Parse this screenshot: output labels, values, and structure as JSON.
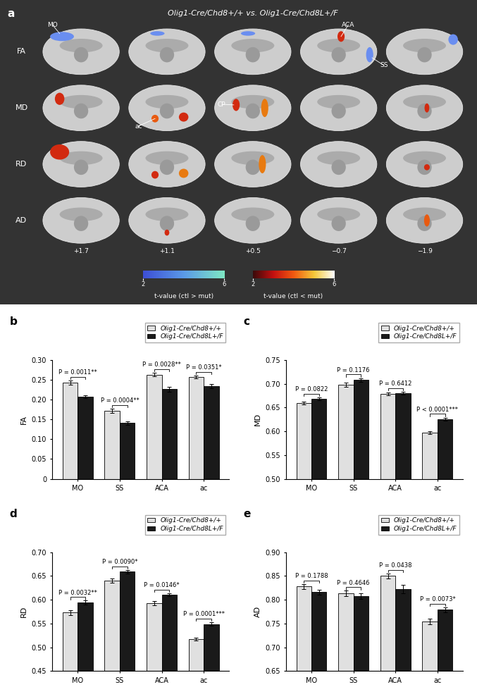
{
  "panel_a": {
    "panel_label": "a",
    "title": "Olig1-Cre/Chd8+/+ vs. Olig1-Cre/Chd8L+/F",
    "rows": [
      "FA",
      "MD",
      "RD",
      "AD"
    ],
    "columns": [
      "+1.7",
      "+1.1",
      "+0.5",
      "−0.7",
      "−1.9"
    ],
    "region_labels": [
      {
        "text": "MO",
        "row": 0,
        "col": 0
      },
      {
        "text": "ACA",
        "row": 0,
        "col": 3
      },
      {
        "text": "SS",
        "row": 0,
        "col": 3
      },
      {
        "text": "ac",
        "row": 1,
        "col": 1
      },
      {
        "text": "CP",
        "row": 1,
        "col": 2
      }
    ],
    "colorbars": [
      {
        "label": "t-value (ctl > mut)",
        "range": [
          2,
          6
        ],
        "ticks": [
          2,
          6
        ],
        "colors": [
          "#3d4fd6",
          "#5b9ae8",
          "#7fe8c4"
        ]
      },
      {
        "label": "t-value (ctl < mut)",
        "range": [
          2,
          6
        ],
        "ticks": [
          2,
          6
        ],
        "colors": [
          "#3a0a0a",
          "#c41010",
          "#f25a10",
          "#f5c83a",
          "#ffffff"
        ]
      }
    ]
  },
  "chart_data": [
    {
      "type": "bar",
      "panel_label": "b",
      "y_label": "FA",
      "categories": [
        "MO",
        "SS",
        "ACA",
        "ac"
      ],
      "ylim": [
        0,
        0.3
      ],
      "yticks": [
        0,
        0.05,
        {
          "value": 0.1,
          "label": "0.10"
        },
        0.15,
        {
          "value": 0.2,
          "label": "0.20"
        },
        0.25,
        {
          "value": 0.3,
          "label": "0.30"
        }
      ],
      "legend": "upper right",
      "series": [
        {
          "name": "Olig1-Cre/Chd8+/+",
          "color": "#e0e0e0",
          "values": [
            0.243,
            0.172,
            0.263,
            0.257
          ],
          "errors": [
            0.005,
            0.005,
            0.005,
            0.004
          ]
        },
        {
          "name": "Olig1-Cre/Chd8L+/F",
          "color": "#1a1a1a",
          "values": [
            0.207,
            0.141,
            0.226,
            0.234
          ],
          "errors": [
            0.004,
            0.004,
            0.007,
            0.005
          ]
        }
      ],
      "annotations": [
        "P = 0.0011**",
        "P = 0.0004**",
        "P = 0.0028**",
        "P = 0.0351*"
      ]
    },
    {
      "type": "bar",
      "panel_label": "c",
      "y_label": "MD",
      "categories": [
        "MO",
        "SS",
        "ACA",
        "ac"
      ],
      "ylim": [
        0.5,
        0.75
      ],
      "yticks": [
        {
          "value": 0.5,
          "label": "0.50"
        },
        0.55,
        {
          "value": 0.6,
          "label": "0.60"
        },
        0.65,
        {
          "value": 0.7,
          "label": "0.70"
        },
        0.75
      ],
      "legend": "upper right",
      "series": [
        {
          "name": "Olig1-Cre/Chd8+/+",
          "color": "#e0e0e0",
          "values": [
            0.659,
            0.698,
            0.678,
            0.597
          ],
          "errors": [
            0.003,
            0.004,
            0.003,
            0.003
          ]
        },
        {
          "name": "Olig1-Cre/Chd8L+/F",
          "color": "#1a1a1a",
          "values": [
            0.668,
            0.708,
            0.68,
            0.626
          ],
          "errors": [
            0.003,
            0.004,
            0.003,
            0.003
          ]
        }
      ],
      "annotations": [
        "P = 0.0822",
        "P = 0.1176",
        "P = 0.6412",
        "P < 0.0001***"
      ]
    },
    {
      "type": "bar",
      "panel_label": "d",
      "y_label": "RD",
      "categories": [
        "MO",
        "SS",
        "ACA",
        "ac"
      ],
      "ylim": [
        0.45,
        0.7
      ],
      "yticks": [
        0.45,
        {
          "value": 0.5,
          "label": "0.50"
        },
        0.55,
        {
          "value": 0.6,
          "label": "0.60"
        },
        0.65,
        {
          "value": 0.7,
          "label": "0.70"
        }
      ],
      "legend": "upper right",
      "series": [
        {
          "name": "Olig1-Cre/Chd8+/+",
          "color": "#e0e0e0",
          "values": [
            0.573,
            0.64,
            0.593,
            0.517
          ],
          "errors": [
            0.005,
            0.004,
            0.004,
            0.003
          ]
        },
        {
          "name": "Olig1-Cre/Chd8L+/F",
          "color": "#1a1a1a",
          "values": [
            0.594,
            0.659,
            0.611,
            0.549
          ],
          "errors": [
            0.004,
            0.004,
            0.003,
            0.004
          ]
        }
      ],
      "annotations": [
        "P = 0.0032**",
        "P = 0.0090*",
        "P = 0.0146*",
        "P = 0.0001***"
      ]
    },
    {
      "type": "bar",
      "panel_label": "e",
      "y_label": "AD",
      "categories": [
        "MO",
        "SS",
        "ACA",
        "ac"
      ],
      "ylim": [
        0.65,
        0.9
      ],
      "yticks": [
        0.65,
        {
          "value": 0.7,
          "label": "0.70"
        },
        0.75,
        {
          "value": 0.8,
          "label": "0.80"
        },
        0.85,
        {
          "value": 0.9,
          "label": "0.90"
        }
      ],
      "legend": "upper right",
      "series": [
        {
          "name": "Olig1-Cre/Chd8+/+",
          "color": "#e0e0e0",
          "values": [
            0.828,
            0.813,
            0.85,
            0.754
          ],
          "errors": [
            0.005,
            0.006,
            0.005,
            0.006
          ]
        },
        {
          "name": "Olig1-Cre/Chd8L+/F",
          "color": "#1a1a1a",
          "values": [
            0.816,
            0.807,
            0.822,
            0.779
          ],
          "errors": [
            0.005,
            0.006,
            0.009,
            0.005
          ]
        }
      ],
      "annotations": [
        "P = 0.1788",
        "P = 0.4646",
        "P = 0.0438",
        "P = 0.0073*"
      ]
    }
  ]
}
